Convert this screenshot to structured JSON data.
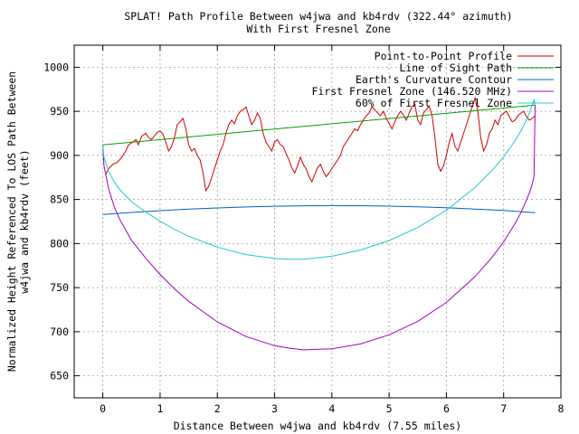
{
  "chart_data": {
    "type": "line",
    "title": "SPLAT! Path Profile Between w4jwa and kb4rdv (322.44° azimuth)",
    "subtitle": "With First Fresnel Zone",
    "xlabel": "Distance Between w4jwa and kb4rdv (7.55 miles)",
    "ylabel_line1": "Normalized Height Referenced To LOS Path Between",
    "ylabel_line2": "w4jwa and kb4rdv (feet)",
    "xlim": [
      -0.5,
      8
    ],
    "ylim": [
      625,
      1025
    ],
    "xticks": [
      "0",
      "1",
      "2",
      "3",
      "4",
      "5",
      "6",
      "7",
      "8"
    ],
    "yticks": [
      "650",
      "700",
      "750",
      "800",
      "850",
      "900",
      "950",
      "1000"
    ],
    "grid": true,
    "legend_position": "top-right",
    "series": [
      {
        "name": "Point-to-Point Profile",
        "color": "#d40000",
        "x": [
          0.05,
          0.1,
          0.18,
          0.25,
          0.32,
          0.4,
          0.45,
          0.52,
          0.58,
          0.62,
          0.68,
          0.75,
          0.8,
          0.85,
          0.9,
          0.95,
          1.0,
          1.05,
          1.1,
          1.15,
          1.2,
          1.25,
          1.3,
          1.35,
          1.4,
          1.45,
          1.5,
          1.55,
          1.6,
          1.65,
          1.7,
          1.75,
          1.8,
          1.85,
          1.9,
          1.95,
          2.0,
          2.05,
          2.1,
          2.15,
          2.2,
          2.25,
          2.3,
          2.35,
          2.4,
          2.45,
          2.5,
          2.55,
          2.6,
          2.65,
          2.7,
          2.75,
          2.8,
          2.85,
          2.9,
          2.95,
          3.0,
          3.05,
          3.1,
          3.15,
          3.2,
          3.25,
          3.3,
          3.35,
          3.4,
          3.45,
          3.5,
          3.55,
          3.6,
          3.65,
          3.7,
          3.75,
          3.8,
          3.85,
          3.9,
          3.95,
          4.0,
          4.05,
          4.1,
          4.15,
          4.2,
          4.25,
          4.3,
          4.35,
          4.4,
          4.45,
          4.5,
          4.55,
          4.6,
          4.65,
          4.7,
          4.75,
          4.8,
          4.85,
          4.9,
          4.95,
          5.0,
          5.05,
          5.1,
          5.15,
          5.2,
          5.25,
          5.3,
          5.35,
          5.4,
          5.45,
          5.5,
          5.55,
          5.6,
          5.65,
          5.7,
          5.75,
          5.8,
          5.85,
          5.9,
          5.95,
          6.0,
          6.05,
          6.1,
          6.15,
          6.2,
          6.25,
          6.3,
          6.35,
          6.4,
          6.45,
          6.5,
          6.55,
          6.6,
          6.65,
          6.7,
          6.75,
          6.8,
          6.85,
          6.9,
          6.95,
          7.0,
          7.05,
          7.1,
          7.15,
          7.2,
          7.25,
          7.3,
          7.35,
          7.4,
          7.45,
          7.5,
          7.55
        ],
        "values": [
          878,
          885,
          890,
          892,
          897,
          905,
          912,
          915,
          918,
          912,
          922,
          925,
          920,
          918,
          922,
          926,
          928,
          924,
          915,
          905,
          910,
          920,
          935,
          938,
          942,
          930,
          912,
          905,
          908,
          900,
          895,
          880,
          860,
          865,
          875,
          885,
          895,
          905,
          912,
          925,
          935,
          940,
          936,
          945,
          950,
          952,
          955,
          945,
          935,
          940,
          948,
          942,
          925,
          915,
          910,
          905,
          915,
          918,
          912,
          910,
          902,
          895,
          886,
          880,
          888,
          898,
          890,
          885,
          876,
          870,
          878,
          886,
          890,
          882,
          876,
          880,
          885,
          890,
          895,
          900,
          910,
          915,
          920,
          925,
          930,
          928,
          935,
          940,
          945,
          948,
          955,
          952,
          948,
          945,
          950,
          942,
          936,
          930,
          938,
          945,
          950,
          946,
          940,
          948,
          955,
          958,
          940,
          935,
          948,
          952,
          956,
          945,
          920,
          890,
          882,
          888,
          900,
          915,
          925,
          910,
          905,
          915,
          925,
          935,
          945,
          955,
          965,
          950,
          920,
          905,
          912,
          925,
          930,
          940,
          935,
          945,
          948,
          950,
          944,
          938,
          940,
          945,
          948,
          950,
          944,
          940,
          942,
          945
        ]
      },
      {
        "name": "Line of Sight Path",
        "color": "#00a000",
        "x": [
          0,
          7.55
        ],
        "values": [
          912,
          957
        ]
      },
      {
        "name": "Earth's Curvature Contour",
        "color": "#0060c0",
        "x": [
          0,
          0.5,
          1,
          1.5,
          2,
          2.5,
          3,
          3.5,
          4,
          4.5,
          5,
          5.5,
          6,
          6.5,
          7,
          7.55
        ],
        "values": [
          833,
          835.3,
          837.3,
          839.0,
          840.4,
          841.5,
          842.3,
          842.8,
          843.0,
          842.9,
          842.4,
          841.7,
          840.6,
          839.2,
          837.5,
          835
        ]
      },
      {
        "name": "First Fresnel Zone (146.520 MHz)",
        "color": "#a000c0",
        "x": [
          0,
          0.02,
          0.1,
          0.2,
          0.3,
          0.5,
          0.75,
          1,
          1.25,
          1.5,
          2,
          2.5,
          3,
          3.25,
          3.5,
          4,
          4.5,
          5,
          5.5,
          6,
          6.5,
          6.8,
          7,
          7.2,
          7.3,
          7.4,
          7.45,
          7.5,
          7.53,
          7.55
        ],
        "values": [
          912,
          888.6,
          862.4,
          841.6,
          826.8,
          803.8,
          783.4,
          765.0,
          748.7,
          734.4,
          711.2,
          694.5,
          684.2,
          681.4,
          679.5,
          680.6,
          686.1,
          696.5,
          711.8,
          733.2,
          762.5,
          784.6,
          801.9,
          822.8,
          835.0,
          849.4,
          857.8,
          867.8,
          876.4,
          957
        ]
      },
      {
        "name": "60% of First Fresnel Zone",
        "color": "#20c8d0",
        "x": [
          0,
          0.02,
          0.1,
          0.2,
          0.3,
          0.5,
          0.75,
          1,
          1.25,
          1.5,
          2,
          2.5,
          3,
          3.25,
          3.5,
          4,
          4.5,
          5,
          5.5,
          6,
          6.5,
          6.8,
          7,
          7.2,
          7.3,
          7.4,
          7.45,
          7.5,
          7.53,
          7.55
        ],
        "values": [
          912,
          897.9,
          882.3,
          869.8,
          861.0,
          847.6,
          835.8,
          825.3,
          816.2,
          808.3,
          795.9,
          787.5,
          783.0,
          782.2,
          782.2,
          785.6,
          792.7,
          803.5,
          818.2,
          837.7,
          863.7,
          883.1,
          898.3,
          916.7,
          927.6,
          940.5,
          948.3,
          957.8,
          963.2,
          957
        ]
      }
    ]
  }
}
